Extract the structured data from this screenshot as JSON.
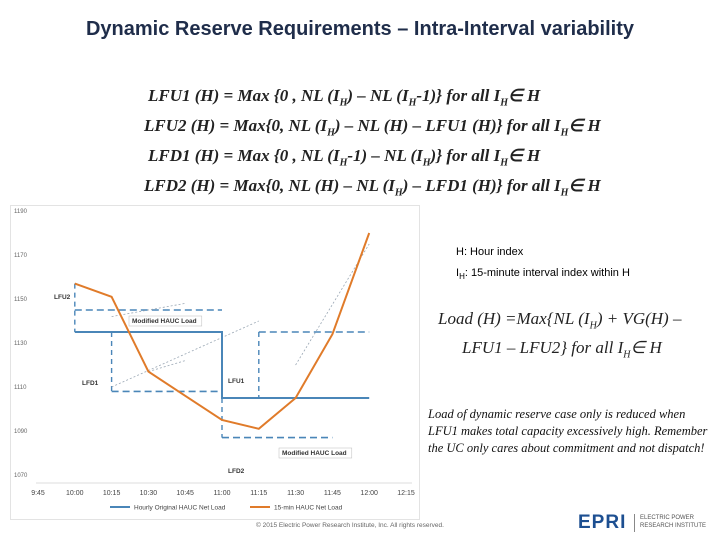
{
  "title": "Dynamic Reserve Requirements – Intra-Interval variability",
  "equations": {
    "lfu1": {
      "a": "LFU1 (H) = Max {0 , NL (I",
      "s1": "H",
      "b": ") – NL (I",
      "s2": "H",
      "c": "-1)} for all I",
      "s3": "H",
      "d": "∈ H"
    },
    "lfu2": {
      "a": "LFU2 (H) = Max{0, NL (I",
      "s1": "H",
      "b": ") – NL (H) – LFU1 (H)} for all I",
      "s2": "H",
      "c": "∈ H"
    },
    "lfd1": {
      "a": "LFD1 (H) = Max {0 , NL (I",
      "s1": "H",
      "b": "-1) – NL (I",
      "s2": "H",
      "c": ")} for all I",
      "s3": "H",
      "d": "∈ H"
    },
    "lfd2": {
      "a": "LFD2 (H) = Max{0, NL (H) – NL (I",
      "s1": "H",
      "b": ") – LFD1 (H)} for all I",
      "s2": "H",
      "c": "∈ H"
    }
  },
  "index_legend": {
    "hour": "H: Hour index",
    "interval_a": "I",
    "interval_sub": "H",
    "interval_b": ": 15-minute interval index within H"
  },
  "load_equation": {
    "l1a": "Load (H) =Max{NL (I",
    "l1s": "H",
    "l1b": ") + VG(H) –",
    "l2a": "LFU1 – LFU2} for all I",
    "l2s": "H",
    "l2b": "∈ H"
  },
  "note": "Load of dynamic reserve case only is reduced when LFU1 makes total capacity excessively high. Remember the UC only cares about commitment and not dispatch!",
  "footer": "© 2015 Electric Power Research Institute, Inc. All rights reserved.",
  "logo": {
    "name": "EPRI",
    "line1": "ELECTRIC POWER",
    "line2": "RESEARCH INSTITUTE"
  },
  "colors": {
    "hourly": "#4a86b8",
    "interval": "#e07b2a",
    "guide": "#8ab1d6",
    "title": "#1f2d4a"
  },
  "chart_data": {
    "type": "line",
    "x_ticks": [
      "9:45",
      "10:00",
      "10:15",
      "10:30",
      "10:45",
      "11:00",
      "11:15",
      "11:30",
      "11:45",
      "12:00",
      "12:15"
    ],
    "y_ticks": [
      1070,
      1090,
      1110,
      1130,
      1150,
      1170,
      1190
    ],
    "ylim": [
      1070,
      1190
    ],
    "series": [
      {
        "name": "Hourly Original HAUC Net Load",
        "x": [
          "10:00",
          "11:00",
          "11:00",
          "12:00"
        ],
        "values": [
          1135,
          1135,
          1105,
          1105
        ]
      },
      {
        "name": "15-min HAUC Net Load",
        "x": [
          "10:00",
          "10:15",
          "10:30",
          "10:45",
          "11:00",
          "11:15",
          "11:30",
          "11:45",
          "12:00"
        ],
        "values": [
          1157,
          1151,
          1117,
          1106,
          1095,
          1091,
          1105,
          1134,
          1180
        ]
      }
    ],
    "annotations": [
      {
        "text": "LFU2"
      },
      {
        "text": "Modified HAUC Load"
      },
      {
        "text": "LFD1"
      },
      {
        "text": "LFU1"
      },
      {
        "text": "Modified HAUC Load"
      },
      {
        "text": "LFD2"
      }
    ],
    "modified_load": [
      {
        "x": [
          "10:00",
          "11:00"
        ],
        "value": 1145
      },
      {
        "x": [
          "10:15",
          "11:00"
        ],
        "value": 1108
      },
      {
        "x": [
          "11:15",
          "12:00"
        ],
        "value": 1135
      },
      {
        "x": [
          "11:00",
          "11:45"
        ],
        "value": 1087
      }
    ]
  }
}
